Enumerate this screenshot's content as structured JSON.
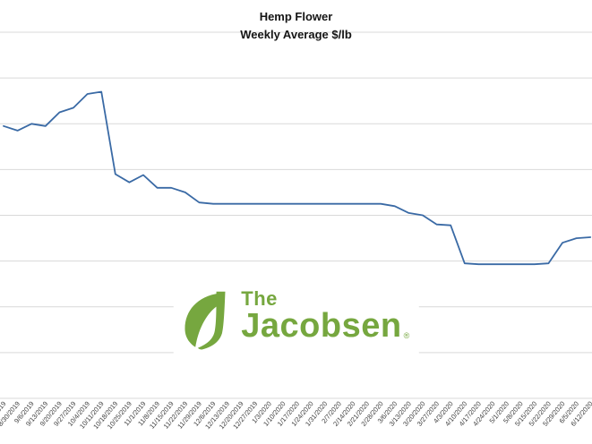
{
  "title": {
    "line1": "Hemp Flower",
    "line2": "Weekly Average $/lb"
  },
  "logo": {
    "the": "The",
    "name": "Jacobsen",
    "registered": "®",
    "color": "#76A73F"
  },
  "chart_data": {
    "type": "line",
    "title": "Hemp Flower",
    "subtitle": "Weekly Average $/lb",
    "xlabel": "",
    "ylabel": "",
    "legend": "none",
    "grid": true,
    "y_axis_labels_visible": false,
    "ylim": [
      0,
      8
    ],
    "units": "relative gridline units (y-axis tick labels are cropped out of the screenshot)",
    "line_color": "#3A6AA5",
    "gridline_color": "#D9D9D9",
    "axis_label_color": "#404040",
    "categories": [
      "8/23/2019",
      "8/30/2019",
      "9/6/2019",
      "9/13/2019",
      "9/20/2019",
      "9/27/2019",
      "10/4/2019",
      "10/11/2019",
      "10/18/2019",
      "10/25/2019",
      "11/1/2019",
      "11/8/2019",
      "11/15/2019",
      "11/22/2019",
      "11/29/2019",
      "12/6/2019",
      "12/13/2019",
      "12/20/2019",
      "12/27/2019",
      "1/3/2020",
      "1/10/2020",
      "1/17/2020",
      "1/24/2020",
      "1/31/2020",
      "2/7/2020",
      "2/14/2020",
      "2/21/2020",
      "2/28/2020",
      "3/6/2020",
      "3/13/2020",
      "3/20/2020",
      "3/27/2020",
      "4/3/2020",
      "4/10/2020",
      "4/17/2020",
      "4/24/2020",
      "5/1/2020",
      "5/8/2020",
      "5/15/2020",
      "5/22/2020",
      "5/29/2020",
      "6/5/2020",
      "6/12/2020"
    ],
    "values": [
      5.95,
      5.85,
      6.0,
      5.95,
      6.25,
      6.35,
      6.65,
      6.7,
      4.9,
      4.72,
      4.88,
      4.6,
      4.6,
      4.5,
      4.28,
      4.25,
      4.25,
      4.25,
      4.25,
      4.25,
      4.25,
      4.25,
      4.25,
      4.25,
      4.25,
      4.25,
      4.25,
      4.25,
      4.2,
      4.05,
      4.0,
      3.8,
      3.78,
      2.95,
      2.93,
      2.93,
      2.93,
      2.93,
      2.93,
      2.95,
      3.4,
      3.5,
      3.52
    ]
  }
}
